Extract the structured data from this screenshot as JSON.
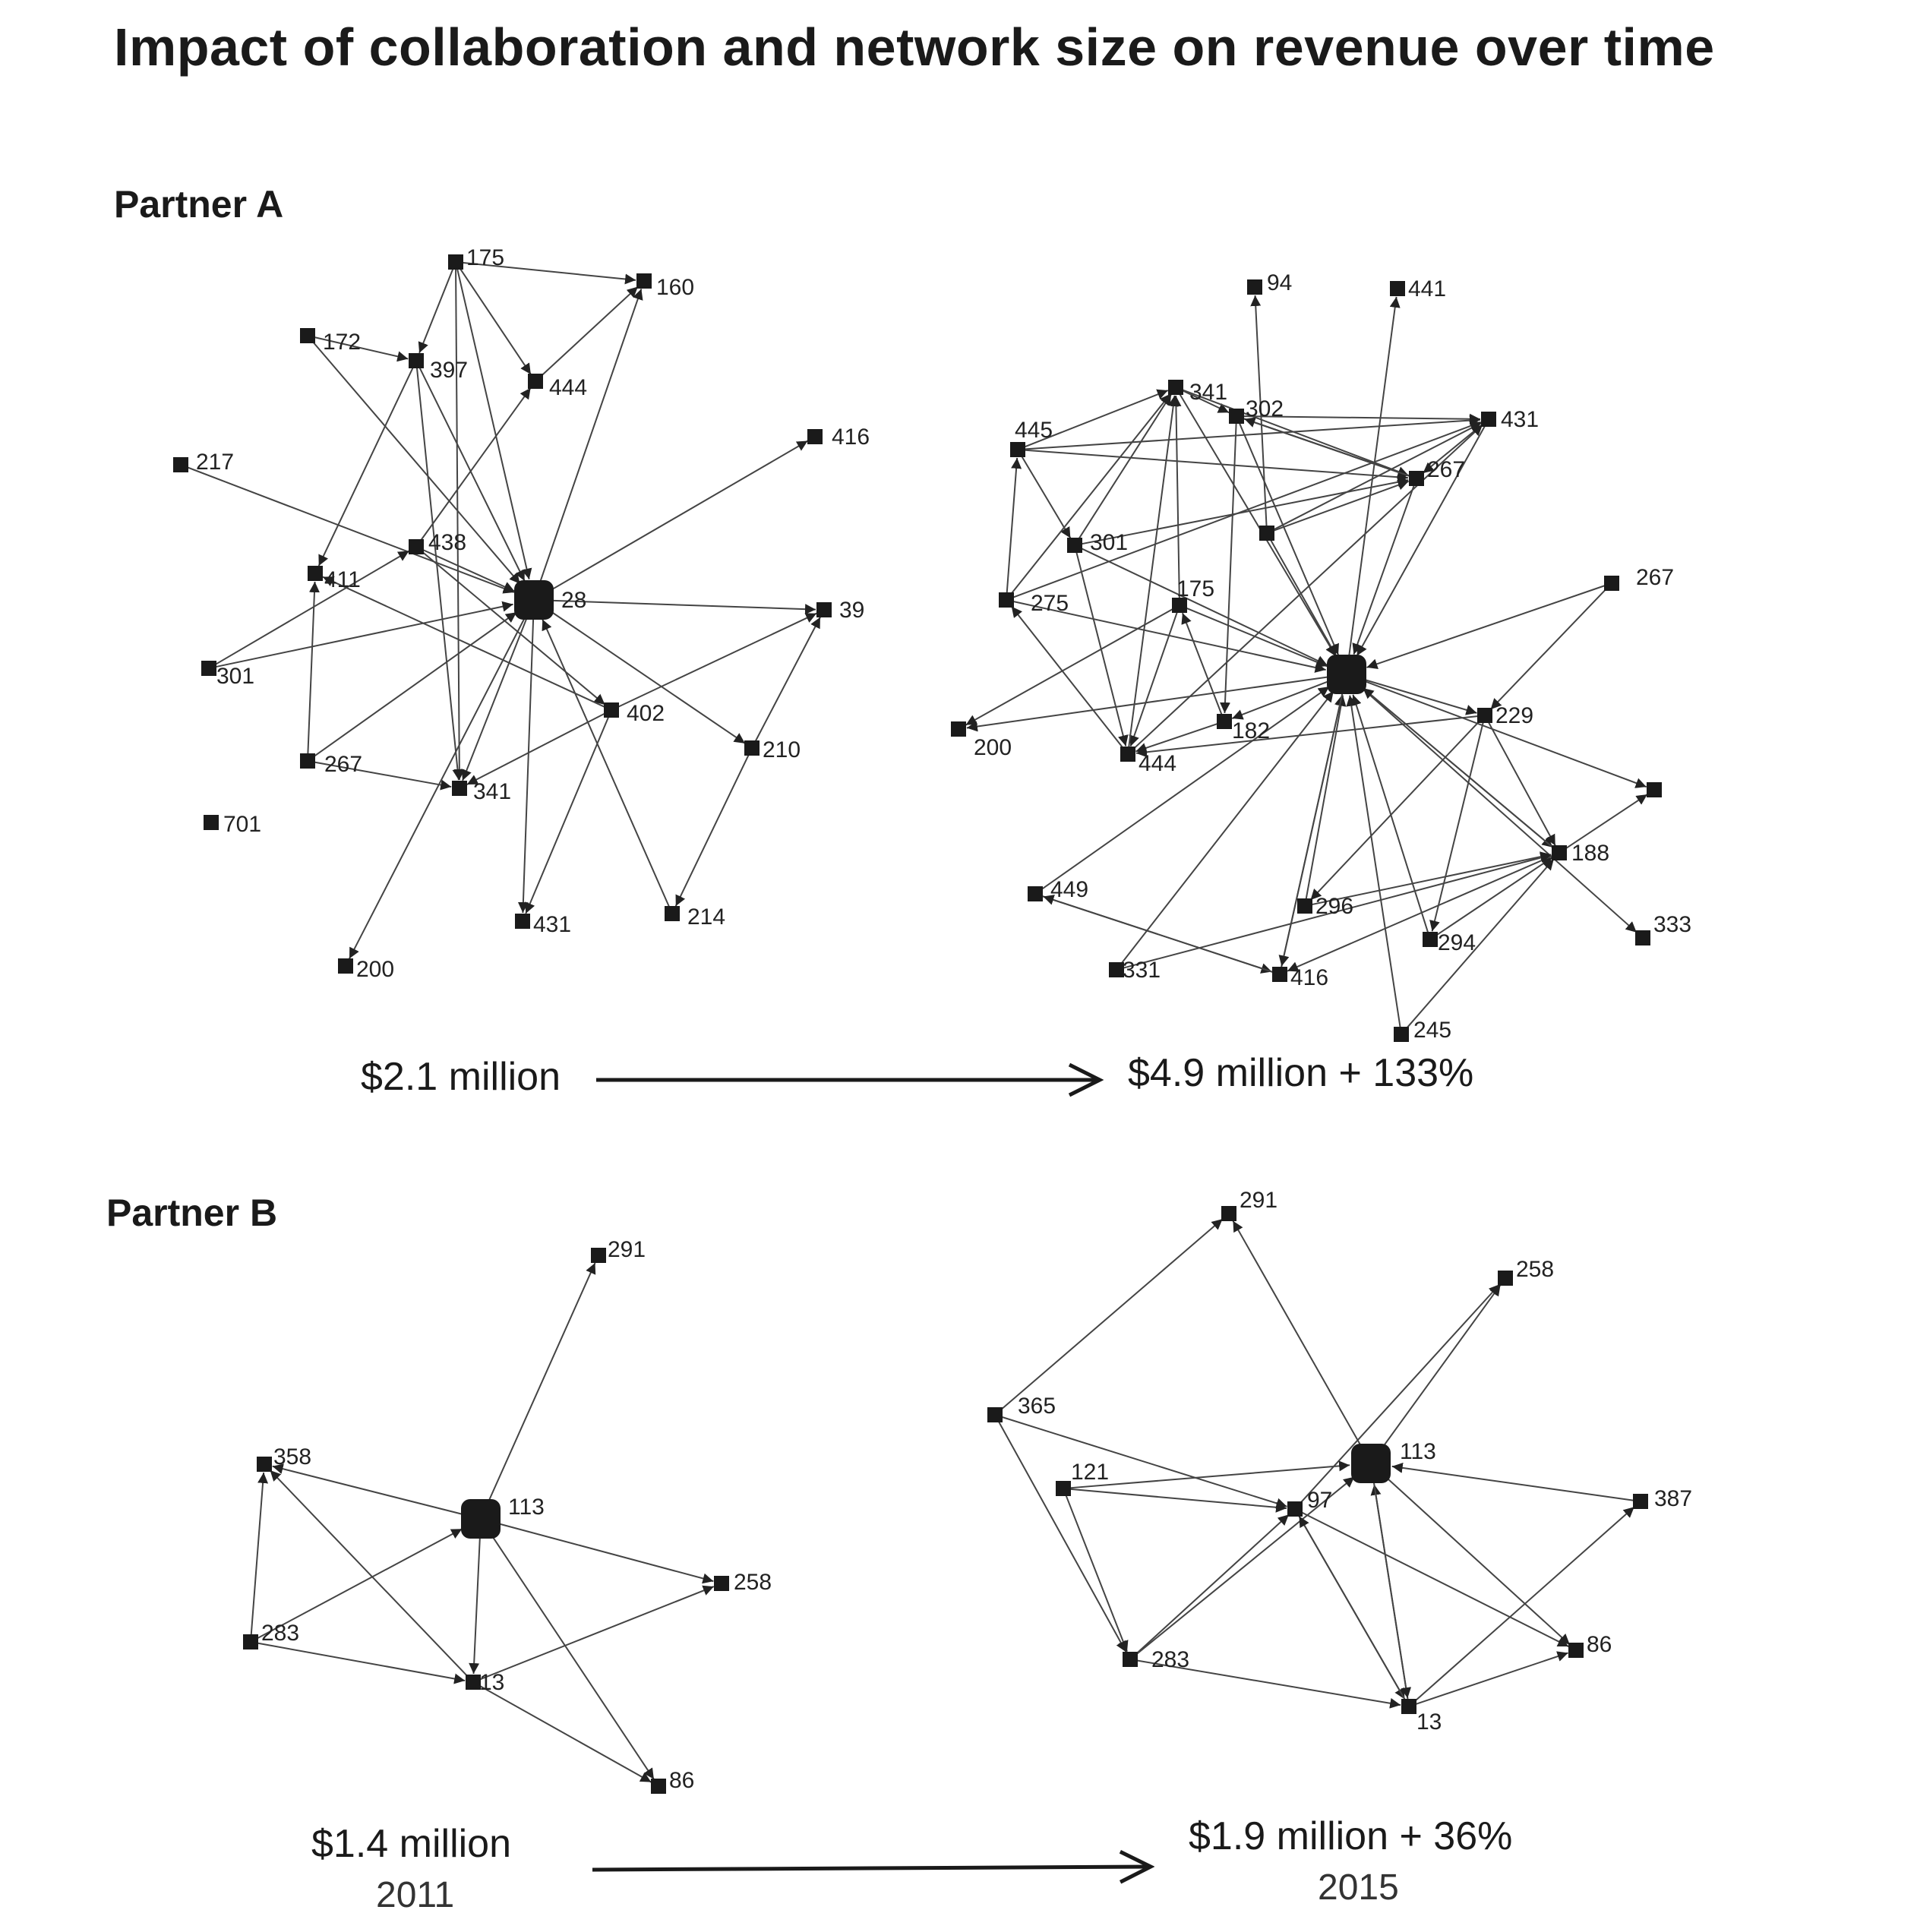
{
  "title": "Impact of collaboration and network size on revenue over time",
  "colors": {
    "edge": "#444444",
    "node": "#1a1a1a",
    "text": "#1a1a1a",
    "arrow": "#222222"
  },
  "partner_a": {
    "label": "Partner A",
    "revenue_before": "$2.1 million",
    "revenue_after": "$4.9 million + 133%",
    "before_network": {
      "nodes": [
        {
          "id": "175",
          "label": "175"
        },
        {
          "id": "160",
          "label": "160"
        },
        {
          "id": "172",
          "label": "172"
        },
        {
          "id": "397",
          "label": "397"
        },
        {
          "id": "444",
          "label": "444"
        },
        {
          "id": "416",
          "label": "416"
        },
        {
          "id": "217",
          "label": "217"
        },
        {
          "id": "438",
          "label": "438"
        },
        {
          "id": "411",
          "label": "411"
        },
        {
          "id": "28",
          "label": "28",
          "hub": true
        },
        {
          "id": "39",
          "label": "39"
        },
        {
          "id": "301",
          "label": "301"
        },
        {
          "id": "402",
          "label": "402"
        },
        {
          "id": "210",
          "label": "210"
        },
        {
          "id": "267",
          "label": "267"
        },
        {
          "id": "341",
          "label": "341"
        },
        {
          "id": "701",
          "label": "701"
        },
        {
          "id": "431",
          "label": "431"
        },
        {
          "id": "214",
          "label": "214"
        },
        {
          "id": "200",
          "label": "200"
        }
      ],
      "edges": [
        [
          "175",
          "160"
        ],
        [
          "175",
          "397"
        ],
        [
          "175",
          "444"
        ],
        [
          "175",
          "28"
        ],
        [
          "172",
          "397"
        ],
        [
          "172",
          "28"
        ],
        [
          "397",
          "411"
        ],
        [
          "397",
          "28"
        ],
        [
          "397",
          "341"
        ],
        [
          "444",
          "160"
        ],
        [
          "438",
          "444"
        ],
        [
          "28",
          "160"
        ],
        [
          "28",
          "416"
        ],
        [
          "217",
          "28"
        ],
        [
          "438",
          "28"
        ],
        [
          "438",
          "402"
        ],
        [
          "301",
          "438"
        ],
        [
          "301",
          "28"
        ],
        [
          "28",
          "39"
        ],
        [
          "402",
          "411"
        ],
        [
          "402",
          "39"
        ],
        [
          "28",
          "210"
        ],
        [
          "210",
          "39"
        ],
        [
          "210",
          "214"
        ],
        [
          "267",
          "411"
        ],
        [
          "267",
          "341"
        ],
        [
          "267",
          "28"
        ],
        [
          "402",
          "341"
        ],
        [
          "28",
          "341"
        ],
        [
          "28",
          "431"
        ],
        [
          "402",
          "431"
        ],
        [
          "214",
          "28"
        ],
        [
          "28",
          "200"
        ],
        [
          "175",
          "341"
        ]
      ]
    },
    "after_network": {
      "nodes": [
        {
          "id": "94",
          "label": "94"
        },
        {
          "id": "441",
          "label": "441"
        },
        {
          "id": "341",
          "label": "341"
        },
        {
          "id": "302",
          "label": "302"
        },
        {
          "id": "431",
          "label": "431"
        },
        {
          "id": "445",
          "label": "445"
        },
        {
          "id": "267a",
          "label": "267"
        },
        {
          "id": "301",
          "label": "301"
        },
        {
          "id": "mid",
          "label": ""
        },
        {
          "id": "267b",
          "label": "267"
        },
        {
          "id": "275",
          "label": "275"
        },
        {
          "id": "175",
          "label": "175"
        },
        {
          "id": "hub",
          "label": "",
          "hub": true
        },
        {
          "id": "229",
          "label": "229"
        },
        {
          "id": "200",
          "label": "200"
        },
        {
          "id": "182",
          "label": "182"
        },
        {
          "id": "444",
          "label": "444"
        },
        {
          "id": "right",
          "label": ""
        },
        {
          "id": "188",
          "label": "188"
        },
        {
          "id": "449",
          "label": "449"
        },
        {
          "id": "296",
          "label": "296"
        },
        {
          "id": "333",
          "label": "333"
        },
        {
          "id": "294",
          "label": "294"
        },
        {
          "id": "331",
          "label": "331"
        },
        {
          "id": "416",
          "label": "416"
        },
        {
          "id": "245",
          "label": "245"
        }
      ],
      "edges": [
        [
          "mid",
          "94"
        ],
        [
          "hub",
          "441"
        ],
        [
          "445",
          "341"
        ],
        [
          "341",
          "302"
        ],
        [
          "302",
          "431"
        ],
        [
          "445",
          "431"
        ],
        [
          "341",
          "267a"
        ],
        [
          "302",
          "267a"
        ],
        [
          "445",
          "267a"
        ],
        [
          "445",
          "301"
        ],
        [
          "301",
          "341"
        ],
        [
          "275",
          "445"
        ],
        [
          "275",
          "341"
        ],
        [
          "302",
          "182"
        ],
        [
          "mid",
          "267a"
        ],
        [
          "mid",
          "hub"
        ],
        [
          "431",
          "267a"
        ],
        [
          "301",
          "267a"
        ],
        [
          "301",
          "hub"
        ],
        [
          "275",
          "hub"
        ],
        [
          "175",
          "hub"
        ],
        [
          "175",
          "341"
        ],
        [
          "175",
          "444"
        ],
        [
          "182",
          "175"
        ],
        [
          "444",
          "341"
        ],
        [
          "444",
          "275"
        ],
        [
          "301",
          "444"
        ],
        [
          "hub",
          "200"
        ],
        [
          "175",
          "200"
        ],
        [
          "182",
          "444"
        ],
        [
          "444",
          "431"
        ],
        [
          "229",
          "444"
        ],
        [
          "hub",
          "182"
        ],
        [
          "267b",
          "hub"
        ],
        [
          "267b",
          "229"
        ],
        [
          "341",
          "hub"
        ],
        [
          "302",
          "hub"
        ],
        [
          "hub",
          "229"
        ],
        [
          "hub",
          "right"
        ],
        [
          "hub",
          "188"
        ],
        [
          "hub",
          "333"
        ],
        [
          "229",
          "188"
        ],
        [
          "229",
          "296"
        ],
        [
          "229",
          "294"
        ],
        [
          "188",
          "right"
        ],
        [
          "296",
          "188"
        ],
        [
          "294",
          "188"
        ],
        [
          "188",
          "416"
        ],
        [
          "331",
          "188"
        ],
        [
          "245",
          "188"
        ],
        [
          "449",
          "416"
        ],
        [
          "416",
          "449"
        ],
        [
          "296",
          "hub"
        ],
        [
          "416",
          "hub"
        ],
        [
          "hub",
          "416"
        ],
        [
          "294",
          "hub"
        ],
        [
          "245",
          "hub"
        ],
        [
          "331",
          "hub"
        ],
        [
          "449",
          "hub"
        ],
        [
          "267a",
          "hub"
        ],
        [
          "431",
          "hub"
        ],
        [
          "188",
          "hub"
        ],
        [
          "302",
          "267a"
        ],
        [
          "267a",
          "302"
        ],
        [
          "mid",
          "431"
        ],
        [
          "275",
          "431"
        ]
      ]
    }
  },
  "partner_b": {
    "label": "Partner B",
    "revenue_before": "$1.4 million",
    "year_before": "2011",
    "revenue_after": "$1.9 million + 36%",
    "year_after": "2015",
    "before_network": {
      "nodes": [
        {
          "id": "291",
          "label": "291"
        },
        {
          "id": "358",
          "label": "358"
        },
        {
          "id": "113",
          "label": "113",
          "hub": true
        },
        {
          "id": "258",
          "label": "258"
        },
        {
          "id": "283",
          "label": "283"
        },
        {
          "id": "13",
          "label": "13"
        },
        {
          "id": "86",
          "label": "86"
        }
      ],
      "edges": [
        [
          "113",
          "291"
        ],
        [
          "113",
          "358"
        ],
        [
          "13",
          "358"
        ],
        [
          "283",
          "358"
        ],
        [
          "283",
          "113"
        ],
        [
          "113",
          "13"
        ],
        [
          "113",
          "258"
        ],
        [
          "13",
          "258"
        ],
        [
          "113",
          "86"
        ],
        [
          "13",
          "86"
        ],
        [
          "283",
          "13"
        ]
      ]
    },
    "after_network": {
      "nodes": [
        {
          "id": "291",
          "label": "291"
        },
        {
          "id": "258",
          "label": "258"
        },
        {
          "id": "365",
          "label": "365"
        },
        {
          "id": "113",
          "label": "113",
          "hub": true
        },
        {
          "id": "121",
          "label": "121"
        },
        {
          "id": "97",
          "label": "97"
        },
        {
          "id": "387",
          "label": "387"
        },
        {
          "id": "283",
          "label": "283"
        },
        {
          "id": "86",
          "label": "86"
        },
        {
          "id": "13",
          "label": "13"
        }
      ],
      "edges": [
        [
          "365",
          "291"
        ],
        [
          "113",
          "291"
        ],
        [
          "113",
          "258"
        ],
        [
          "97",
          "258"
        ],
        [
          "365",
          "97"
        ],
        [
          "365",
          "283"
        ],
        [
          "121",
          "113"
        ],
        [
          "121",
          "97"
        ],
        [
          "121",
          "283"
        ],
        [
          "283",
          "97"
        ],
        [
          "283",
          "113"
        ],
        [
          "97",
          "86"
        ],
        [
          "113",
          "86"
        ],
        [
          "387",
          "113"
        ],
        [
          "13",
          "113"
        ],
        [
          "113",
          "13"
        ],
        [
          "97",
          "13"
        ],
        [
          "13",
          "97"
        ],
        [
          "13",
          "387"
        ],
        [
          "13",
          "86"
        ],
        [
          "283",
          "13"
        ]
      ]
    }
  }
}
